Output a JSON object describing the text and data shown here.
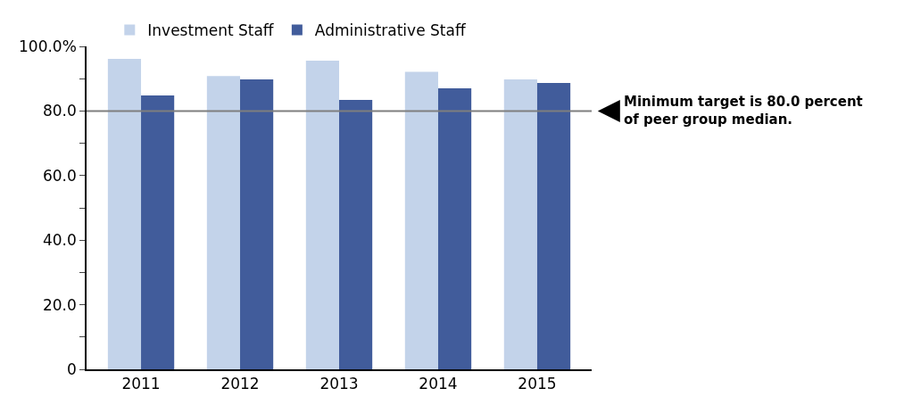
{
  "chart_data": {
    "type": "bar",
    "categories": [
      "2011",
      "2012",
      "2013",
      "2014",
      "2015"
    ],
    "series": [
      {
        "name": "Investment Staff",
        "color": "#c3d3ea",
        "values": [
          96.1,
          90.8,
          95.6,
          92.1,
          89.8
        ]
      },
      {
        "name": "Administrative Staff",
        "color": "#415c9b",
        "values": [
          84.8,
          89.8,
          83.4,
          87.0,
          88.7
        ]
      }
    ],
    "ylim": [
      0,
      100
    ],
    "yticks": [
      0,
      {
        "value": 10,
        "label": null
      },
      {
        "value": 20,
        "label": "20.0"
      },
      {
        "value": 30,
        "label": null
      },
      {
        "value": 40,
        "label": "40.0"
      },
      {
        "value": 50,
        "label": null
      },
      {
        "value": 60,
        "label": "60.0"
      },
      {
        "value": 70,
        "label": null
      },
      {
        "value": 80,
        "label": "80.0"
      },
      {
        "value": 90,
        "label": null
      },
      {
        "value": 100,
        "label": "100.0%"
      }
    ],
    "ref_lines": [
      {
        "axis": "y",
        "value": 80,
        "label": "Minimum target is 80.0 percent\nof peer group median.",
        "color": "#7f7f7f"
      }
    ],
    "legend": "top left"
  }
}
